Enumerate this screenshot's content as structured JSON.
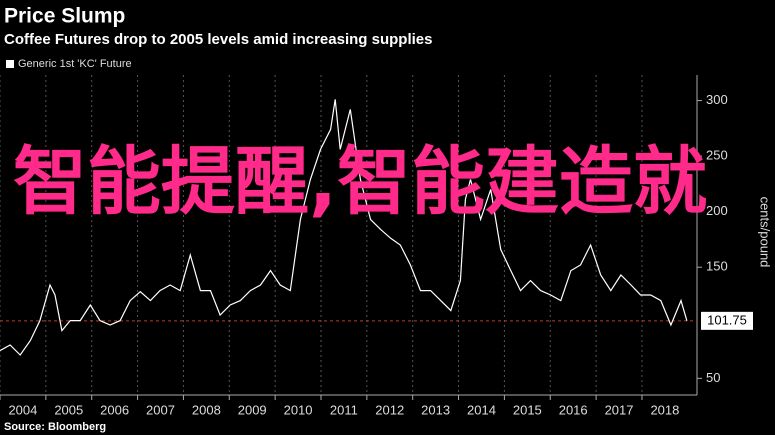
{
  "chart_data": {
    "type": "line",
    "title": "Price Slump",
    "subtitle": "Coffee Futures drop to 2005 levels amid increasing supplies",
    "y_axis_label": "cents/pound",
    "source": "Source: Bloomberg",
    "overlay_text": "智能提醒,智能建造就",
    "x": [
      2004,
      2004.22,
      2004.44,
      2004.66,
      2004.87,
      2005.09,
      2005.2,
      2005.35,
      2005.53,
      2005.75,
      2005.97,
      2006.18,
      2006.4,
      2006.62,
      2006.84,
      2007.06,
      2007.28,
      2007.49,
      2007.71,
      2007.93,
      2008.15,
      2008.37,
      2008.59,
      2008.8,
      2009.02,
      2009.24,
      2009.46,
      2009.68,
      2009.9,
      2010.11,
      2010.33,
      2010.55,
      2010.77,
      2010.99,
      2011.21,
      2011.31,
      2011.42,
      2011.64,
      2011.86,
      2012.08,
      2012.3,
      2012.52,
      2012.73,
      2012.95,
      2013.17,
      2013.39,
      2013.61,
      2013.83,
      2014.04,
      2014.15,
      2014.26,
      2014.48,
      2014.7,
      2014.92,
      2015.14,
      2015.35,
      2015.57,
      2015.79,
      2016.01,
      2016.23,
      2016.45,
      2016.66,
      2016.88,
      2017.1,
      2017.32,
      2017.54,
      2017.76,
      2017.97,
      2018.19,
      2018.41,
      2018.63,
      2018.85,
      2018.98
    ],
    "series": [
      {
        "name": "Generic 1st 'KC' Future",
        "color": "#ffffff",
        "values": [
          75,
          80,
          71,
          84,
          102,
          134,
          125,
          93,
          102,
          102,
          116,
          102,
          98,
          102,
          120,
          128,
          120,
          129,
          134,
          129,
          161,
          129,
          129,
          107,
          116,
          120,
          129,
          134,
          147,
          134,
          129,
          193,
          229,
          256,
          274,
          301,
          256,
          292,
          229,
          193,
          184,
          176,
          170,
          152,
          129,
          129,
          120,
          111,
          138,
          211,
          229,
          193,
          220,
          166,
          147,
          129,
          138,
          129,
          125,
          120,
          147,
          152,
          170,
          143,
          129,
          143,
          134,
          125,
          125,
          120,
          98,
          120,
          101.75
        ]
      }
    ],
    "last_price": 101.75,
    "xlim": [
      2004,
      2019.2
    ],
    "xticks": [
      2004,
      2005,
      2006,
      2007,
      2008,
      2009,
      2010,
      2011,
      2012,
      2013,
      2014,
      2015,
      2016,
      2017,
      2018
    ],
    "ylim": [
      35,
      323
    ],
    "yticks": [
      50,
      150,
      200,
      250,
      300
    ],
    "grid": true,
    "reference_color": "#c0392b"
  }
}
